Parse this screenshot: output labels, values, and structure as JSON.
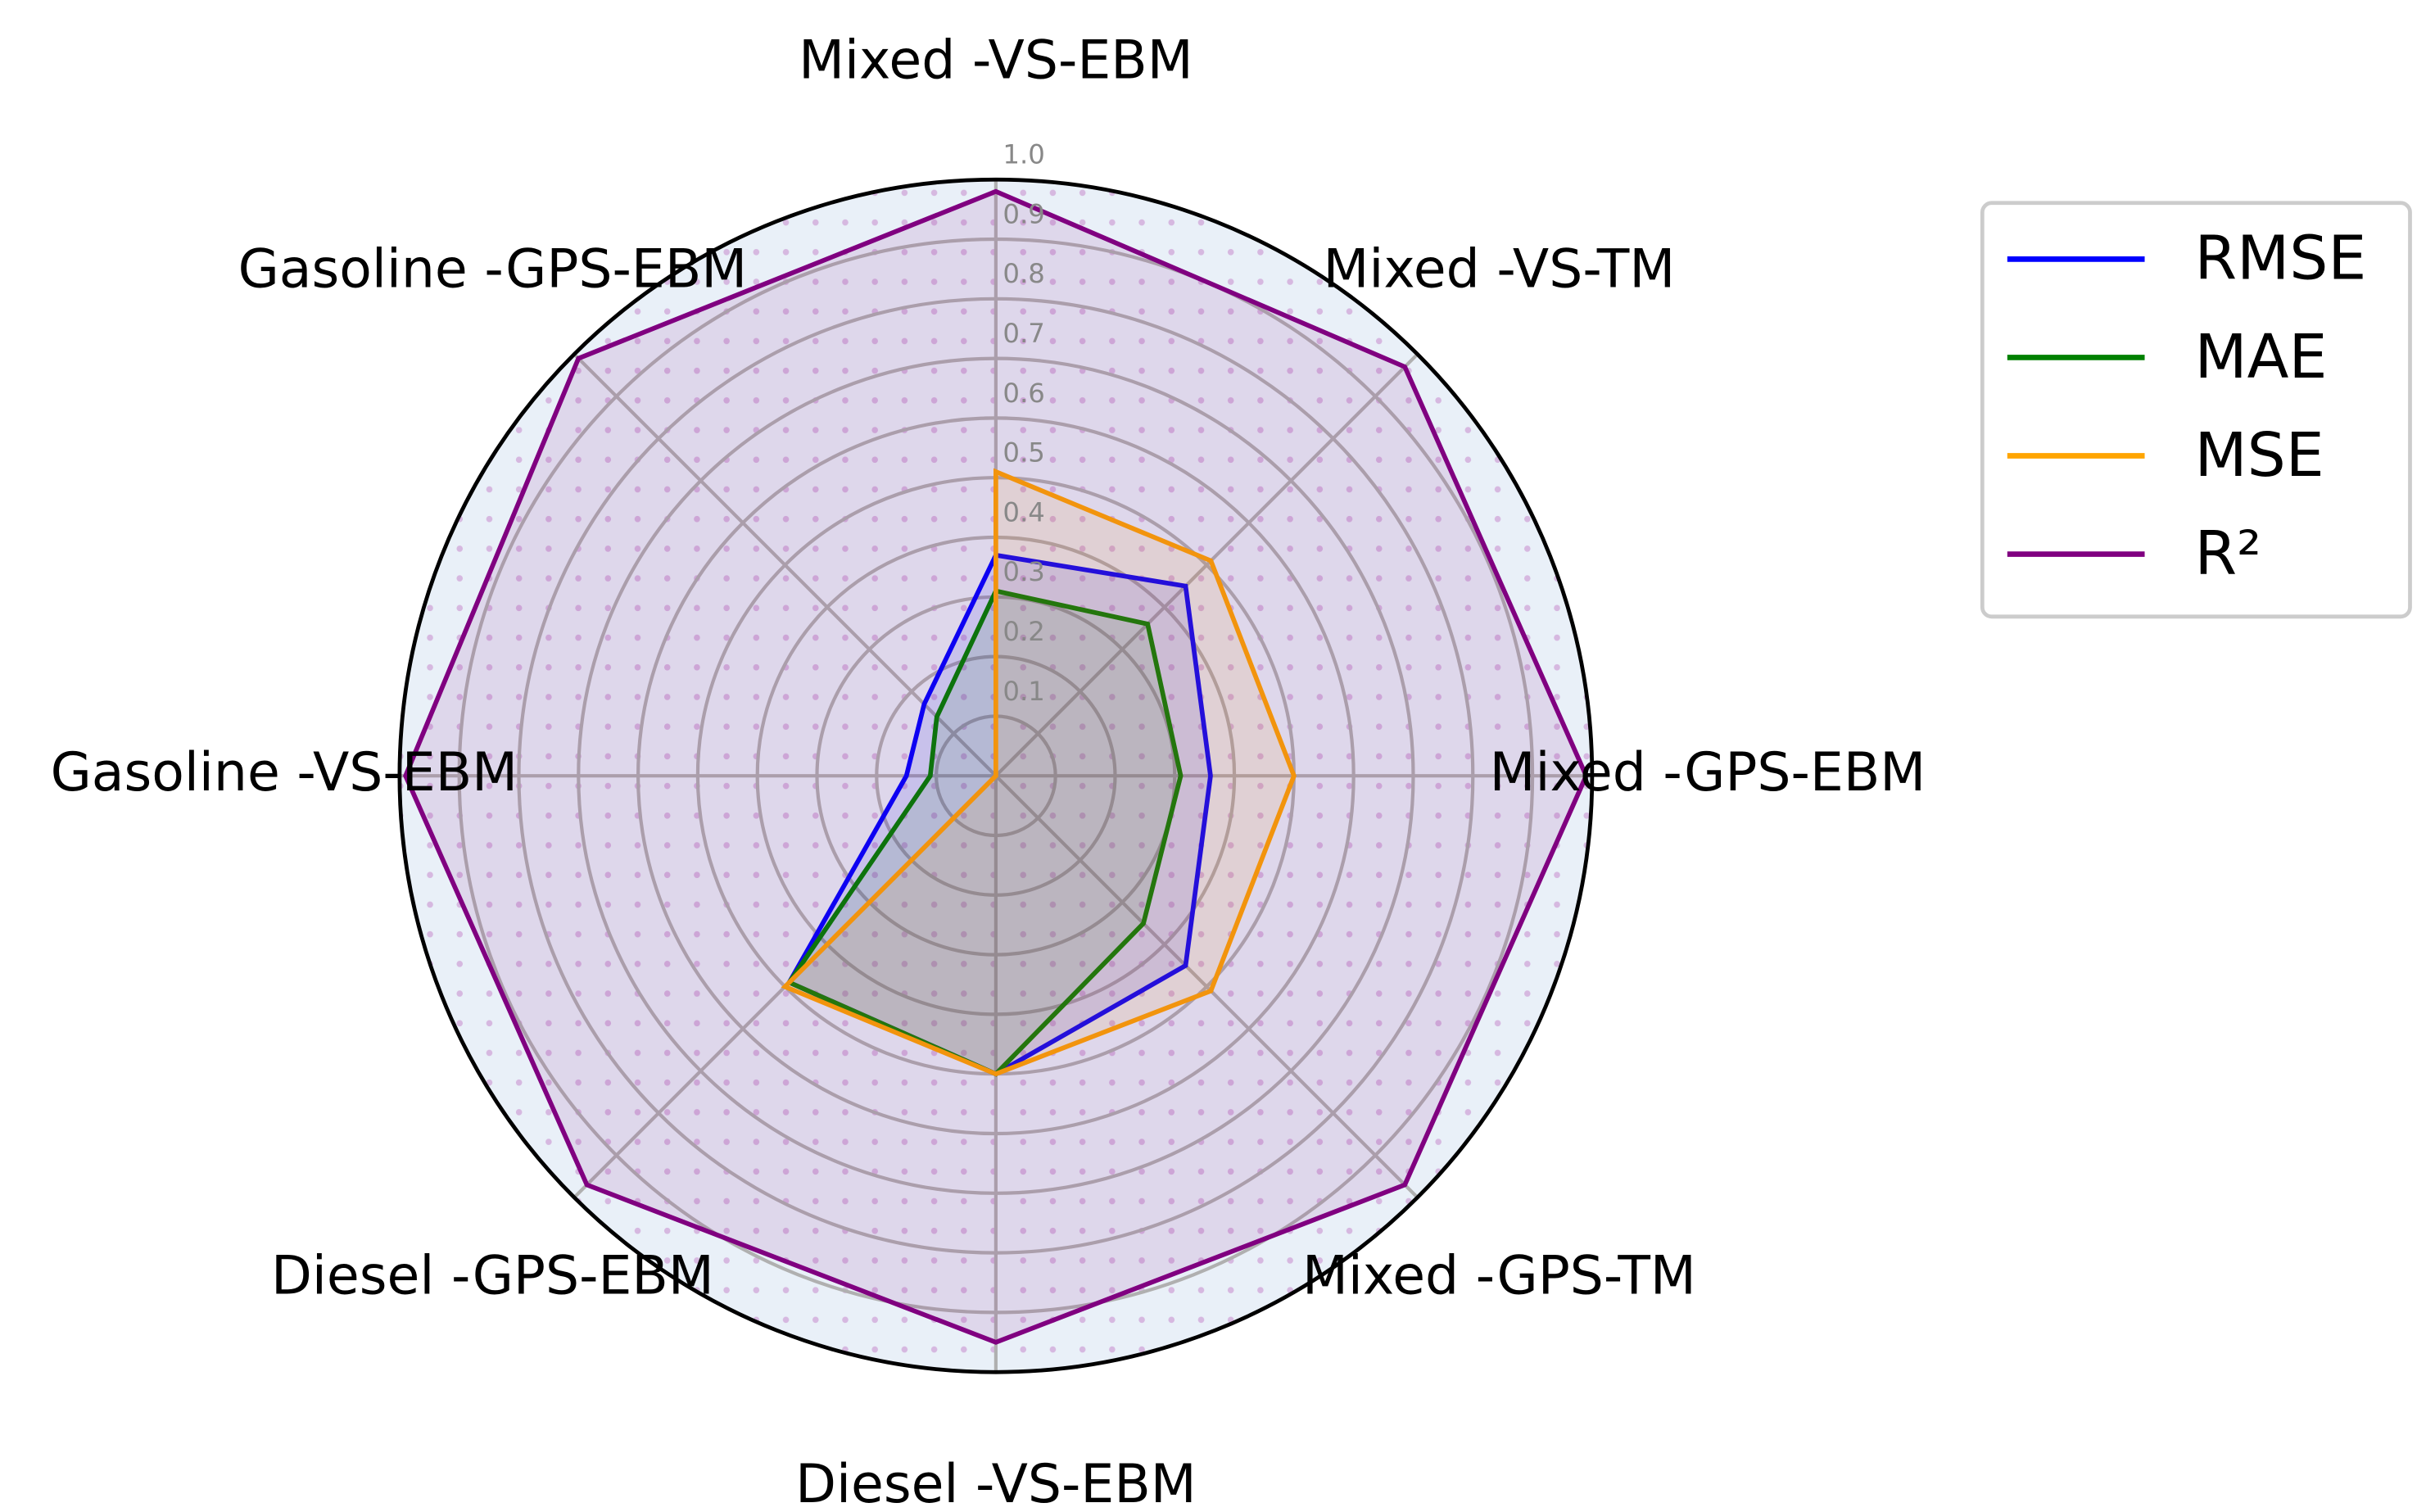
{
  "chart_data": {
    "type": "radar",
    "categories": [
      "Mixed -VS-EBM",
      "Mixed -VS-TM",
      "Mixed -GPS-EBM",
      "Mixed -GPS-TM",
      "Diesel -VS-EBM",
      "Diesel -GPS-EBM",
      "Gasoline -VS-EBM",
      "Gasoline -GPS-EBM"
    ],
    "series": [
      {
        "name": "RMSE",
        "color": "#0000ff",
        "values": [
          0.37,
          0.45,
          0.36,
          0.45,
          0.5,
          0.49,
          0.15,
          0.17
        ]
      },
      {
        "name": "MAE",
        "color": "#008000",
        "values": [
          0.31,
          0.36,
          0.31,
          0.35,
          0.5,
          0.49,
          0.11,
          0.14
        ]
      },
      {
        "name": "MSE",
        "color": "#ffa500",
        "values": [
          0.51,
          0.51,
          0.5,
          0.51,
          0.5,
          0.5,
          0,
          0
        ]
      },
      {
        "name": "R²",
        "color": "#800080",
        "values": [
          0.98,
          0.97,
          0.99,
          0.97,
          0.95,
          0.97,
          0.99,
          0.99
        ]
      }
    ],
    "ylim": [
      0,
      1
    ],
    "yticks": [
      0.1,
      0.2,
      0.3,
      0.4,
      0.5,
      0.6,
      0.7,
      0.8,
      0.9,
      {
        "value": 1,
        "label": "1.0"
      }
    ],
    "grid": true,
    "legend": "right"
  }
}
